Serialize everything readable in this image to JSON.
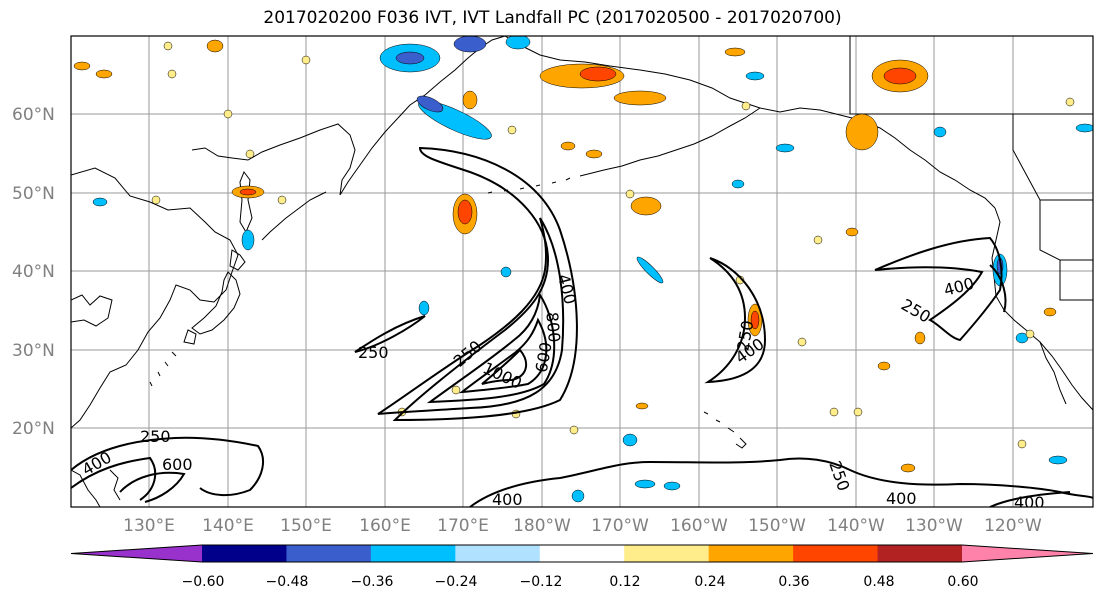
{
  "title": "2017020200 F036 IVT, IVT Landfall PC (2017020500 - 2017020700)",
  "lat_labels": [
    "60°N",
    "50°N",
    "40°N",
    "30°N",
    "20°N"
  ],
  "lon_labels": [
    "130°E",
    "140°E",
    "150°E",
    "160°E",
    "170°E",
    "180°W",
    "170°W",
    "160°W",
    "150°W",
    "140°W",
    "130°W",
    "120°W"
  ],
  "colorbar": {
    "colors": [
      "#9932CC",
      "#00008B",
      "#3A5FCD",
      "#00BFFF",
      "#B0E2FF",
      "#FFFFFF",
      "#FFEC8B",
      "#FFA500",
      "#FF4500",
      "#B22222",
      "#FF82AB"
    ],
    "ticks": [
      "−0.60",
      "−0.48",
      "−0.36",
      "−0.24",
      "−0.12",
      "0.12",
      "0.24",
      "0.36",
      "0.48",
      "0.60"
    ]
  },
  "contour_labels": [
    "250",
    "250",
    "400",
    "800",
    "1000",
    "600",
    "250",
    "400",
    "400",
    "250",
    "250",
    "600",
    "400",
    "250",
    "400",
    "400",
    "400"
  ]
}
